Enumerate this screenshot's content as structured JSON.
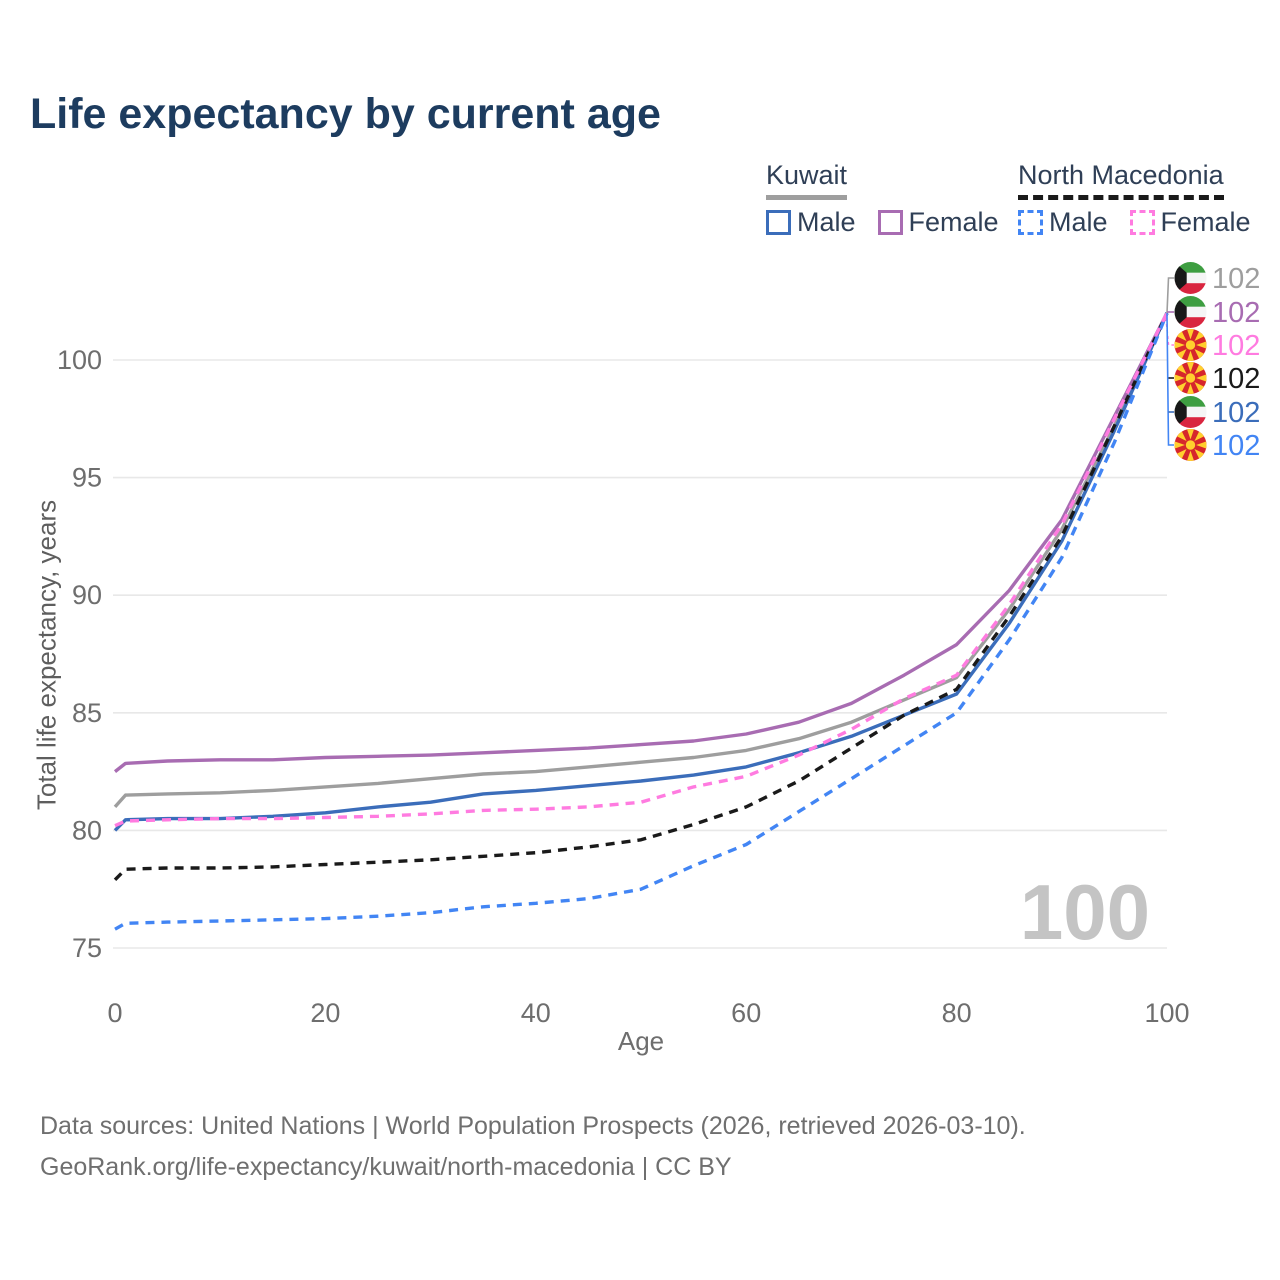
{
  "title": "Life expectancy by current age",
  "legend": {
    "kuwait": {
      "title": "Kuwait",
      "male": "Male",
      "female": "Female"
    },
    "north_macedonia": {
      "title": "North Macedonia",
      "male": "Male",
      "female": "Female"
    }
  },
  "axes": {
    "x_label": "Age",
    "y_label": "Total life expectancy, years"
  },
  "watermark": "100",
  "footer": {
    "line1": "Data sources: United Nations | World Population Prospects (2026, retrieved 2026-03-10).",
    "line2": "GeoRank.org/life-expectancy/kuwait/north-macedonia | CC BY"
  },
  "icons": {
    "kuwait_flag_colors": {
      "green": "#3e9e41",
      "white": "#f5f5f5",
      "red": "#d9253f",
      "black": "#181818"
    },
    "north_macedonia_flag_colors": {
      "red": "#d6262c",
      "yellow": "#ffd02e"
    }
  },
  "chart_data": {
    "type": "line",
    "title": "Life expectancy by current age",
    "xlabel": "Age",
    "ylabel": "Total life expectancy, years",
    "x_ticks": [
      0,
      20,
      40,
      60,
      80,
      100
    ],
    "y_ticks": [
      75,
      80,
      85,
      90,
      95,
      100
    ],
    "xlim": [
      0,
      100
    ],
    "ylim": [
      74.5,
      102.5
    ],
    "grid": "horizontal",
    "legend_position": "top-right",
    "ages": [
      0,
      1,
      5,
      10,
      15,
      20,
      25,
      30,
      35,
      40,
      45,
      50,
      55,
      60,
      65,
      70,
      75,
      80,
      85,
      90,
      95,
      100
    ],
    "series": [
      {
        "name": "Kuwait",
        "sex": "Total",
        "line_style": "solid",
        "color": "#9e9e9e",
        "values": [
          81.0,
          81.5,
          81.55,
          81.6,
          81.7,
          81.85,
          82.0,
          82.2,
          82.4,
          82.5,
          82.7,
          82.9,
          83.1,
          83.4,
          83.9,
          84.6,
          85.55,
          86.5,
          89.4,
          92.8,
          97.2,
          102
        ]
      },
      {
        "name": "Kuwait Male",
        "sex": "Male",
        "line_style": "solid",
        "color": "#3b6dba",
        "values": [
          80.0,
          80.45,
          80.5,
          80.5,
          80.6,
          80.75,
          81.0,
          81.2,
          81.55,
          81.7,
          81.9,
          82.1,
          82.35,
          82.7,
          83.3,
          84.0,
          84.9,
          85.8,
          88.8,
          92.3,
          97.0,
          102
        ]
      },
      {
        "name": "Kuwait Female",
        "sex": "Female",
        "line_style": "solid",
        "color": "#a86cb2",
        "values": [
          82.5,
          82.85,
          82.95,
          83.0,
          83.0,
          83.1,
          83.15,
          83.2,
          83.3,
          83.4,
          83.5,
          83.65,
          83.8,
          84.1,
          84.6,
          85.4,
          86.6,
          87.9,
          90.2,
          93.2,
          97.6,
          102
        ]
      },
      {
        "name": "North Macedonia",
        "sex": "Total",
        "line_style": "dashed",
        "color": "#1a1a1a",
        "values": [
          77.9,
          78.35,
          78.4,
          78.4,
          78.45,
          78.55,
          78.65,
          78.75,
          78.9,
          79.05,
          79.3,
          79.6,
          80.25,
          81.0,
          82.1,
          83.5,
          84.9,
          86.0,
          89.1,
          92.5,
          97.2,
          102
        ]
      },
      {
        "name": "North Macedonia Male",
        "sex": "Male",
        "line_style": "dashed",
        "color": "#4285f4",
        "values": [
          75.8,
          76.05,
          76.1,
          76.15,
          76.2,
          76.25,
          76.35,
          76.5,
          76.75,
          76.9,
          77.1,
          77.5,
          78.5,
          79.4,
          80.8,
          82.2,
          83.6,
          85.0,
          88.1,
          91.6,
          96.5,
          102
        ]
      },
      {
        "name": "North Macedonia Female",
        "sex": "Female",
        "line_style": "dashed",
        "color": "#ff7be0",
        "values": [
          80.2,
          80.4,
          80.45,
          80.5,
          80.5,
          80.55,
          80.6,
          80.7,
          80.85,
          80.9,
          81.0,
          81.2,
          81.85,
          82.3,
          83.2,
          84.3,
          85.6,
          86.6,
          89.6,
          93.0,
          97.5,
          102
        ]
      }
    ],
    "end_labels": [
      {
        "country": "Kuwait",
        "flag": "kuwait",
        "value": "102",
        "color": "#9e9e9e"
      },
      {
        "country": "Kuwait",
        "flag": "kuwait",
        "value": "102",
        "color": "#a86cb2"
      },
      {
        "country": "North Macedonia",
        "flag": "north-macedonia",
        "value": "102",
        "color": "#ff7be0"
      },
      {
        "country": "North Macedonia",
        "flag": "north-macedonia",
        "value": "102",
        "color": "#1a1a1a"
      },
      {
        "country": "Kuwait",
        "flag": "kuwait",
        "value": "102",
        "color": "#3b6dba"
      },
      {
        "country": "North Macedonia",
        "flag": "north-macedonia",
        "value": "102",
        "color": "#4285f4"
      }
    ]
  }
}
